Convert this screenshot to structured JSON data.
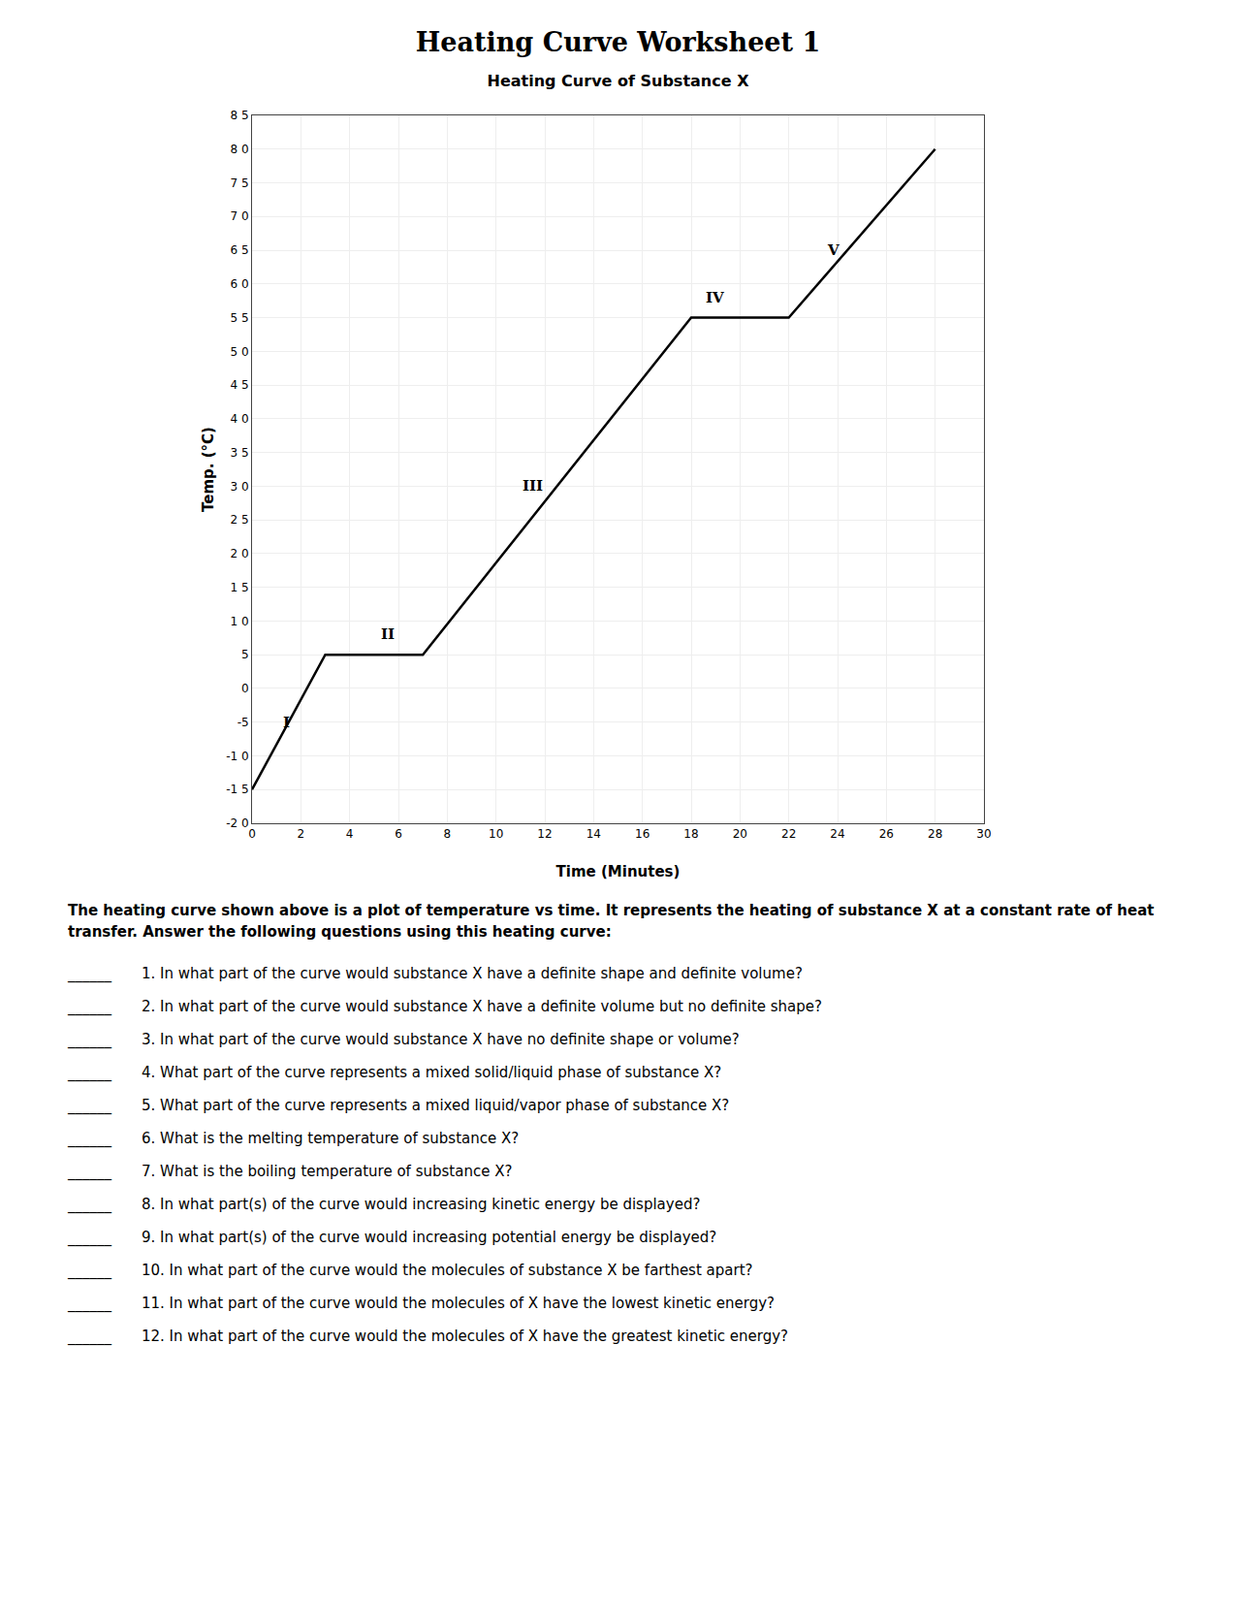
{
  "chart_data": {
    "type": "line",
    "page_title": "Heating Curve Worksheet 1",
    "title": "Heating Curve of Substance X",
    "x_label": "Time (Minutes)",
    "y_label": "Temp. (°C)",
    "x": [
      0,
      3,
      7,
      18,
      22,
      28
    ],
    "values": [
      -15,
      5,
      5,
      55,
      55,
      80
    ],
    "color": "#000000",
    "xlim": [
      0,
      30
    ],
    "ylim": [
      -20,
      85
    ],
    "xticks": [
      0,
      2,
      4,
      6,
      8,
      10,
      12,
      14,
      16,
      18,
      20,
      22,
      24,
      26,
      28,
      30
    ],
    "yticks": [
      {
        "value": -20,
        "label": "-2 0"
      },
      {
        "value": -15,
        "label": "-1 5"
      },
      {
        "value": -10,
        "label": "-1 0"
      },
      -5,
      0,
      5,
      {
        "value": 10,
        "label": "1 0"
      },
      {
        "value": 15,
        "label": "1 5"
      },
      {
        "value": 20,
        "label": "2 0"
      },
      {
        "value": 25,
        "label": "2 5"
      },
      {
        "value": 30,
        "label": "3 0"
      },
      {
        "value": 35,
        "label": "3 5"
      },
      {
        "value": 40,
        "label": "4 0"
      },
      {
        "value": 45,
        "label": "4 5"
      },
      {
        "value": 50,
        "label": "5 0"
      },
      {
        "value": 55,
        "label": "5 5"
      },
      {
        "value": 60,
        "label": "6 0"
      },
      {
        "value": 65,
        "label": "6 5"
      },
      {
        "value": 70,
        "label": "7 0"
      },
      {
        "value": 75,
        "label": "7 5"
      },
      {
        "value": 80,
        "label": "8 0"
      },
      {
        "value": 85,
        "label": "8 5"
      }
    ],
    "grid": true,
    "annotations": [
      {
        "text": "I",
        "x": 1.2,
        "y": -5
      },
      {
        "text": "II",
        "x": 5.2,
        "y": 8
      },
      {
        "text": "III",
        "x": 11,
        "y": 30
      },
      {
        "text": "IV",
        "x": 18.5,
        "y": 58
      },
      {
        "text": "V",
        "x": 23.5,
        "y": 65
      }
    ],
    "intro_text": "The heating curve shown above is a plot of temperature vs time. It represents the heating of substance X at a constant rate of heat transfer. Answer the following questions using this heating curve:",
    "answer_blank": "______",
    "questions": [
      "1. In what part of the curve would substance X have a definite shape and definite volume?",
      "2. In what part of the curve would substance X have a definite volume but no definite shape?",
      "3. In what part of the curve would substance X have no definite shape or volume?",
      "4. What part of the curve represents a mixed solid/liquid phase of substance X?",
      "5. What part of the curve represents a mixed liquid/vapor phase of substance X?",
      "6. What is the melting temperature of substance X?",
      "7. What is the boiling temperature of substance X?",
      "8. In what part(s) of the curve would increasing kinetic energy be displayed?",
      "9. In what part(s) of the curve would increasing potential energy be displayed?",
      "10. In what part of the curve would the molecules of substance X be farthest apart?",
      "11. In what part of the curve would the molecules of X have the lowest kinetic energy?",
      "12. In what part of the curve would the molecules of X have the greatest kinetic energy?"
    ]
  }
}
